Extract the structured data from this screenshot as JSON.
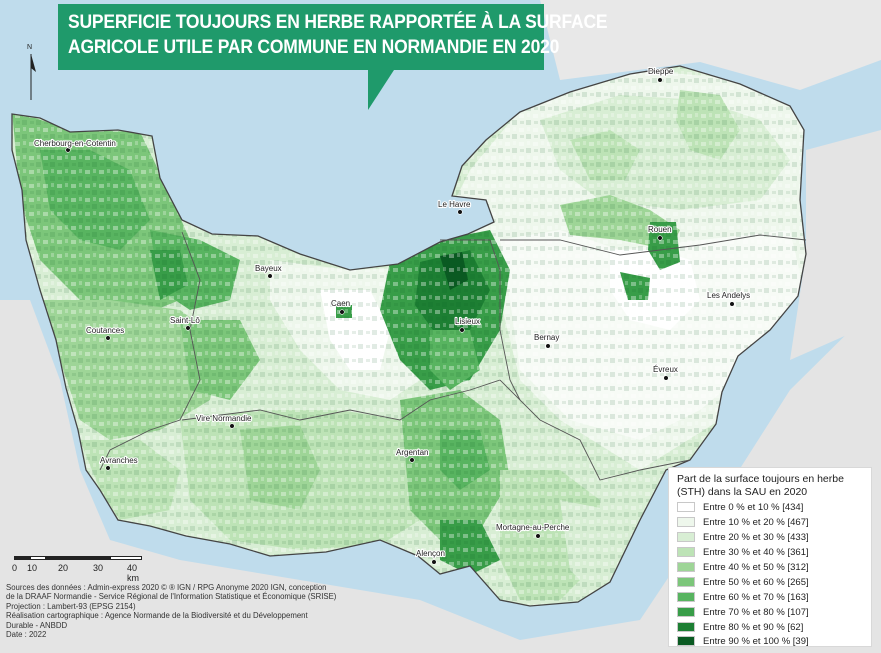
{
  "title": {
    "line1": "SUPERFICIE TOUJOURS EN HERBE RAPPORTÉE À LA SURFACE",
    "line2": "AGRICOLE UTILE PAR COMMUNE EN NORMANDIE EN 2020",
    "color": "#1f9a6b"
  },
  "north_arrow": {
    "label": "N"
  },
  "cities": [
    {
      "id": "dieppe",
      "name": "Dieppe"
    },
    {
      "id": "cherbourg",
      "name": "Cherbourg-en-Cotentin"
    },
    {
      "id": "le-havre",
      "name": "Le Havre"
    },
    {
      "id": "rouen",
      "name": "Rouen"
    },
    {
      "id": "bayeux",
      "name": "Bayeux"
    },
    {
      "id": "caen",
      "name": "Caen"
    },
    {
      "id": "lisieux",
      "name": "Lisieux"
    },
    {
      "id": "les-andelys",
      "name": "Les Andelys"
    },
    {
      "id": "saint-lo",
      "name": "Saint-Lô"
    },
    {
      "id": "coutances",
      "name": "Coutances"
    },
    {
      "id": "bernay",
      "name": "Bernay"
    },
    {
      "id": "evreux",
      "name": "Évreux"
    },
    {
      "id": "vire",
      "name": "Vire Normandie"
    },
    {
      "id": "avranches",
      "name": "Avranches"
    },
    {
      "id": "argentan",
      "name": "Argentan"
    },
    {
      "id": "mortagne",
      "name": "Mortagne-au-Perche"
    },
    {
      "id": "alencon",
      "name": "Alençon"
    }
  ],
  "legend": {
    "title": "Part de la surface toujours en herbe (STH) dans la SAU en 2020",
    "classes": [
      {
        "label": "Entre 0 % et 10 % [434]",
        "color": "#ffffff"
      },
      {
        "label": "Entre 10 % et 20 % [467]",
        "color": "#eef7ec"
      },
      {
        "label": "Entre 20 % et 30 % [433]",
        "color": "#d8eed4"
      },
      {
        "label": "Entre 30 % et 40 % [361]",
        "color": "#bde3b6"
      },
      {
        "label": "Entre 40 % et 50 % [312]",
        "color": "#9ed597"
      },
      {
        "label": "Entre 50 % et 60 % [265]",
        "color": "#7cc67a"
      },
      {
        "label": "Entre 60 % et 70 % [163]",
        "color": "#58b460"
      },
      {
        "label": "Entre 70 % et 80 % [107]",
        "color": "#389d48"
      },
      {
        "label": "Entre 80 % et 90 % [62]",
        "color": "#1d7f33"
      },
      {
        "label": "Entre 90 % et 100 % [39]",
        "color": "#0a5a22"
      }
    ]
  },
  "scale": {
    "ticks": [
      "0",
      "10",
      "20",
      "30",
      "40 km"
    ]
  },
  "sources": [
    "Sources des données : Admin-express 2020 © ® IGN / RPG Anonyme 2020 IGN, conception",
    "de la DRAAF Normandie - Service Régional de l'Information Statistique et Économique (SRISE)",
    "Projection : Lambert-93 (EPSG 2154)",
    "Réalisation cartographique : Agence Normande de la Biodiversité et du Développement",
    "Durable - ANBDD",
    "Date : 2022"
  ],
  "colors": {
    "sea": "#bfdcec",
    "land_outside": "#e4e4e4",
    "boundary": "#444444"
  }
}
